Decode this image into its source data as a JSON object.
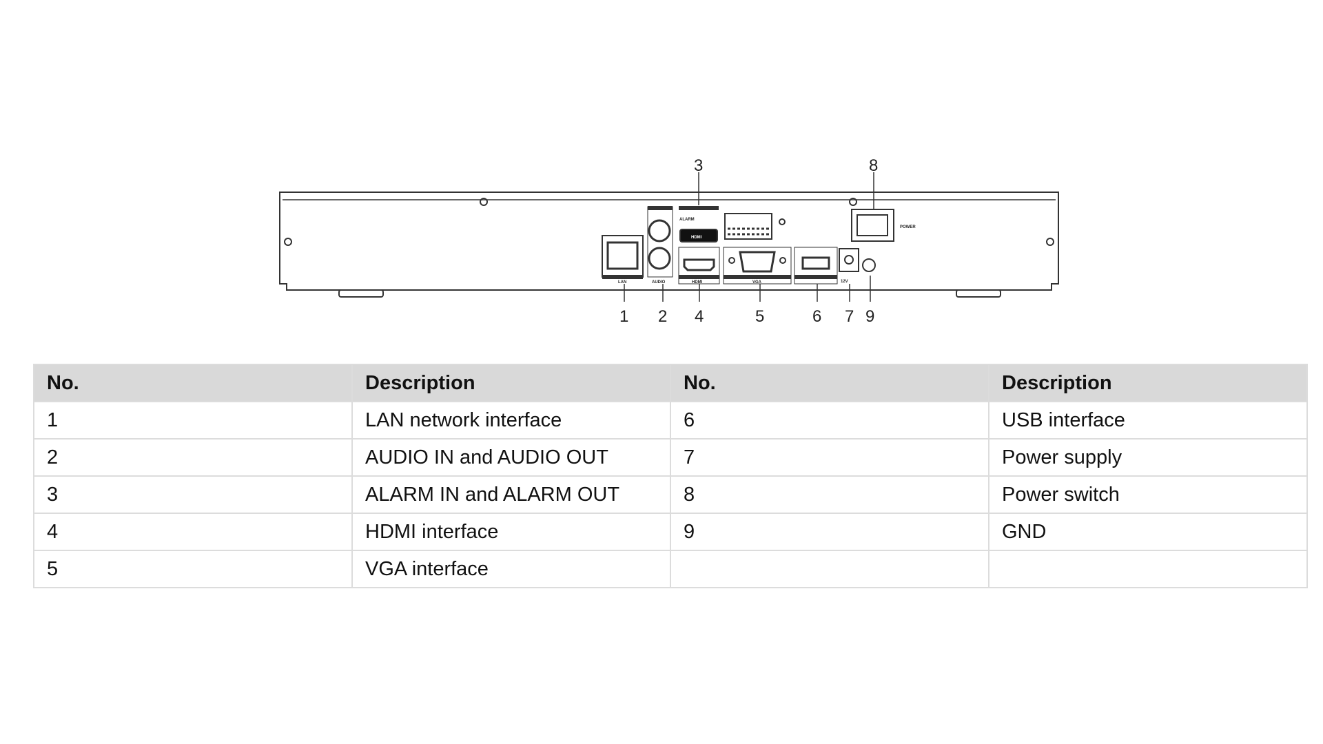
{
  "diagram": {
    "callouts_top": [
      "3",
      "8"
    ],
    "callouts_bottom": [
      "1",
      "2",
      "4",
      "5",
      "6",
      "7",
      "9"
    ],
    "device_labels": {
      "lan": "LAN",
      "audio": "AUDIO",
      "hdmi": "HDMI",
      "hdmi_logo": "HDMI",
      "vga": "VGA",
      "alarm": "ALARM",
      "power": "POWER",
      "dc": "12V"
    }
  },
  "table": {
    "headers": [
      "No.",
      "Description",
      "No.",
      "Description"
    ],
    "rows": [
      [
        "1",
        "LAN network interface",
        "6",
        "USB interface"
      ],
      [
        "2",
        "AUDIO IN and AUDIO OUT",
        "7",
        "Power supply"
      ],
      [
        "3",
        "ALARM IN and ALARM OUT",
        "8",
        "Power switch"
      ],
      [
        "4",
        "HDMI interface",
        "9",
        "GND"
      ],
      [
        "5",
        "VGA interface",
        "",
        ""
      ]
    ]
  },
  "colors": {
    "header_bg": "#d9d9d9",
    "border": "#dcdcdc"
  }
}
